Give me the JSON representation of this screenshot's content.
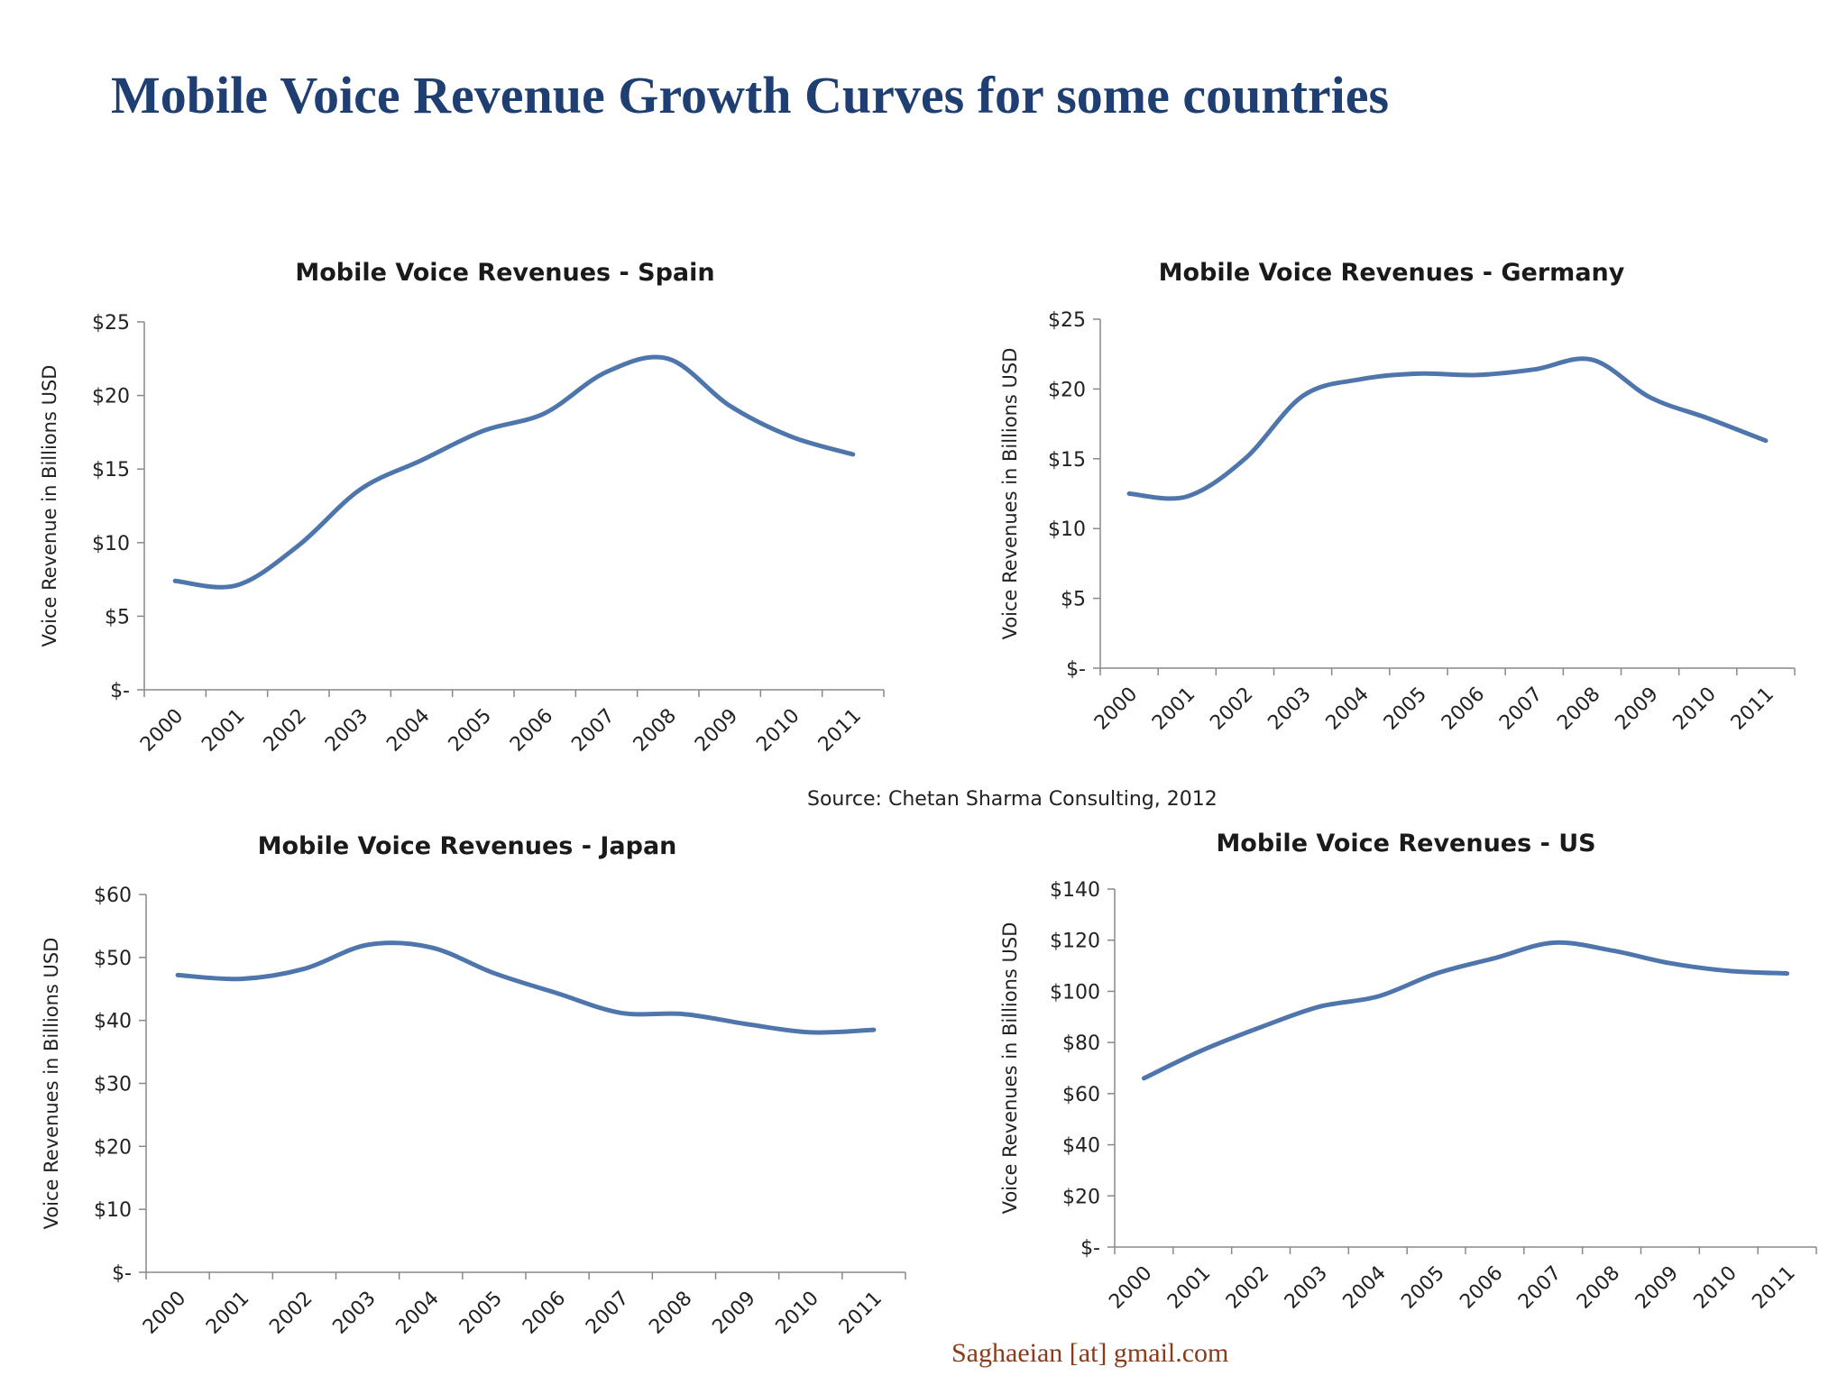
{
  "page": {
    "title": "Mobile Voice Revenue Growth Curves for some countries",
    "source": "Source:  Chetan Sharma Consulting, 2012",
    "footer": "Saghaeian [at] gmail.com"
  },
  "colors": {
    "title": "#1f3e72",
    "series": "#4f76ac",
    "footer": "#8a3c1a"
  },
  "chart_data": [
    {
      "type": "line",
      "title": "Mobile Voice Revenues - Spain",
      "ylabel": "Voice Revenue in Billions USD",
      "xlabel": "",
      "categories": [
        "2000",
        "2001",
        "2002",
        "2003",
        "2004",
        "2005",
        "2006",
        "2007",
        "2008",
        "2009",
        "2010",
        "2011"
      ],
      "yticks": [
        "$-",
        "$5",
        "$10",
        "$15",
        "$20",
        "$25"
      ],
      "ylim": [
        0,
        25
      ],
      "series": [
        {
          "values": [
            7.4,
            7.1,
            9.8,
            13.6,
            15.6,
            17.6,
            18.8,
            21.6,
            22.5,
            19.3,
            17.2,
            16.0
          ]
        }
      ]
    },
    {
      "type": "line",
      "title": "Mobile Voice Revenues - Germany",
      "ylabel": "Voice Revenues in Billions USD",
      "xlabel": "",
      "categories": [
        "2000",
        "2001",
        "2002",
        "2003",
        "2004",
        "2005",
        "2006",
        "2007",
        "2008",
        "2009",
        "2010",
        "2011"
      ],
      "yticks": [
        "$-",
        "$5",
        "$10",
        "$15",
        "$20",
        "$25"
      ],
      "ylim": [
        0,
        25
      ],
      "series": [
        {
          "values": [
            12.5,
            12.3,
            15.0,
            19.5,
            20.7,
            21.1,
            21.0,
            21.4,
            22.1,
            19.4,
            17.9,
            16.3
          ]
        }
      ]
    },
    {
      "type": "line",
      "title": "Mobile Voice Revenues - Japan",
      "ylabel": "Voice Revenues in Billions USD",
      "xlabel": "",
      "categories": [
        "2000",
        "2001",
        "2002",
        "2003",
        "2004",
        "2005",
        "2006",
        "2007",
        "2008",
        "2009",
        "2010",
        "2011"
      ],
      "yticks": [
        "$-",
        "$10",
        "$20",
        "$30",
        "$40",
        "$50",
        "$60"
      ],
      "ylim": [
        0,
        60
      ],
      "series": [
        {
          "values": [
            47.2,
            46.6,
            48.2,
            52.0,
            51.6,
            47.5,
            44.3,
            41.2,
            41.0,
            39.4,
            38.1,
            38.5
          ]
        }
      ]
    },
    {
      "type": "line",
      "title": "Mobile Voice Revenues - US",
      "ylabel": "Voice Revenues in Billions USD",
      "xlabel": "",
      "categories": [
        "2000",
        "2001",
        "2002",
        "2003",
        "2004",
        "2005",
        "2006",
        "2007",
        "2008",
        "2009",
        "2010",
        "2011"
      ],
      "yticks": [
        "$-",
        "$20",
        "$40",
        "$60",
        "$80",
        "$100",
        "$120",
        "$140"
      ],
      "ylim": [
        0,
        140
      ],
      "series": [
        {
          "values": [
            66,
            77,
            86,
            94,
            98,
            107,
            113,
            119,
            116,
            111,
            108,
            107
          ]
        }
      ]
    }
  ]
}
